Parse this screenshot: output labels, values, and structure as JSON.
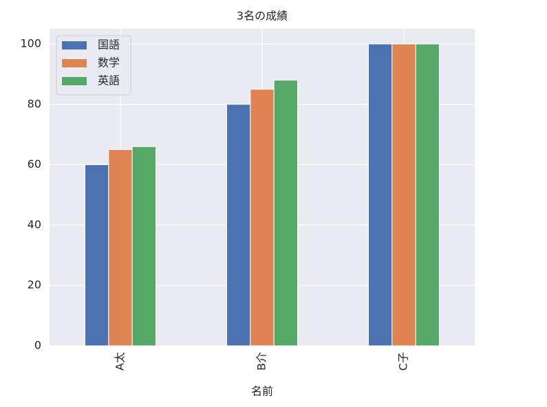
{
  "chart_data": {
    "type": "bar",
    "title": "3名の成績",
    "x_label": "名前",
    "categories": [
      "A太",
      "B介",
      "C子"
    ],
    "series": [
      {
        "name": "国語",
        "color": "#4c72b0",
        "values": [
          60,
          80,
          100
        ]
      },
      {
        "name": "数学",
        "color": "#dd8452",
        "values": [
          65,
          85,
          100
        ]
      },
      {
        "name": "英語",
        "color": "#55a868",
        "values": [
          66,
          88,
          100
        ]
      }
    ],
    "ylim": [
      0,
      105
    ],
    "yticks": [
      0,
      20,
      40,
      60,
      80,
      100
    ],
    "grid": true,
    "legend": "upper left"
  }
}
